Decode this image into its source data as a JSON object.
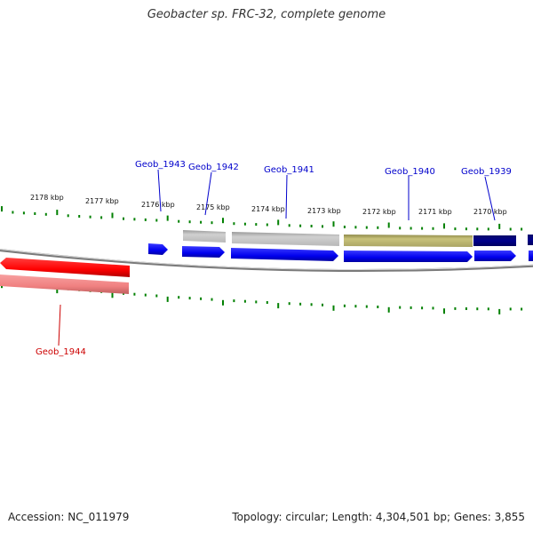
{
  "title": "Geobacter sp. FRC-32, complete genome",
  "footer": {
    "accession": "Accession: NC_011979",
    "stats": "Topology: circular; Length: 4,304,501 bp; Genes: 3,855"
  },
  "colors": {
    "forward_cds": "#0000ee",
    "reverse_cds": "#ff0000",
    "navy_gene": "#00008b",
    "olive_gene": "#bdb76b",
    "grey_gene": "#c0c0c0",
    "pink_gene": "#f08080",
    "tick": "#008000",
    "backbone": "#808080",
    "label_forward": "#0000cc",
    "label_reverse": "#cc0000"
  },
  "ticks": [
    {
      "label": "2178 kbp"
    },
    {
      "label": "2177 kbp"
    },
    {
      "label": "2176 kbp"
    },
    {
      "label": "2175 kbp"
    },
    {
      "label": "2174 kbp"
    },
    {
      "label": "2173 kbp"
    },
    {
      "label": "2172 kbp"
    },
    {
      "label": "2171 kbp"
    },
    {
      "label": "2170 kbp"
    }
  ],
  "genes": [
    {
      "name": "Geob_1943",
      "strand": "forward"
    },
    {
      "name": "Geob_1942",
      "strand": "forward"
    },
    {
      "name": "Geob_1941",
      "strand": "forward"
    },
    {
      "name": "Geob_1940",
      "strand": "forward"
    },
    {
      "name": "Geob_1939",
      "strand": "forward"
    },
    {
      "name": "Geob_1944",
      "strand": "reverse"
    }
  ]
}
